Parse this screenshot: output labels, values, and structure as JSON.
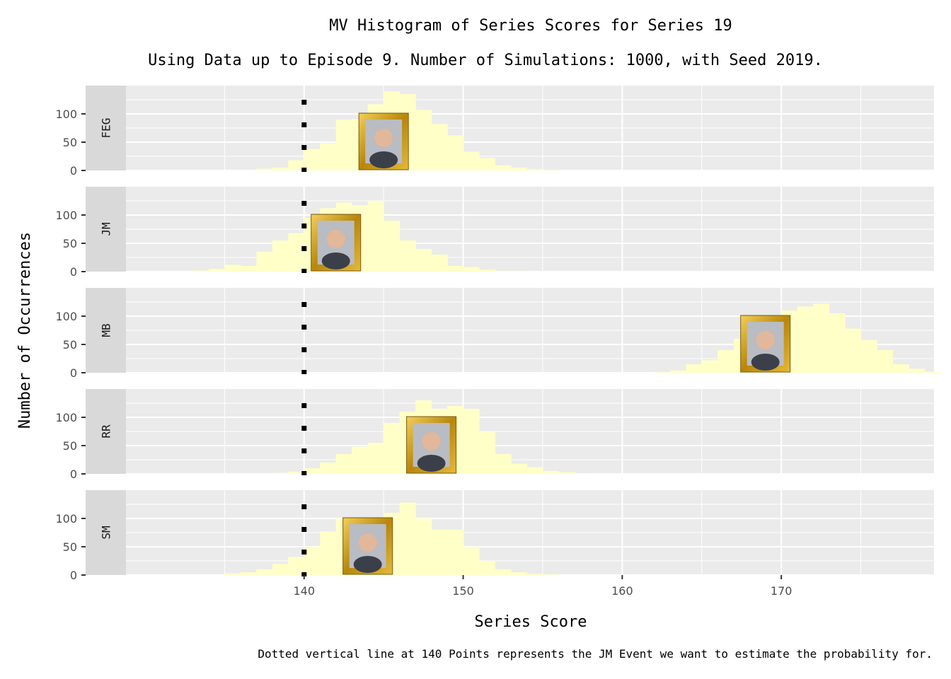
{
  "chart_data": {
    "type": "bar",
    "title": "MV Histogram of Series Scores for Series 19",
    "subtitle": "Using Data up to Episode 9. Number of Simulations: 1000, with Seed 2019.",
    "xlabel": "Series Score",
    "ylabel": "Number of Occurrences",
    "caption": "Dotted vertical line at 140 Points represents the JM Event we want to estimate the probability for.",
    "xlim": [
      128.8,
      179.6
    ],
    "ylim": [
      0,
      150
    ],
    "x_ticks": [
      140,
      150,
      160,
      170
    ],
    "y_ticks": [
      0,
      50,
      100
    ],
    "reference_line_x": 140,
    "bin_start": 129,
    "bin_width": 1,
    "bar_color": "#ffffc8",
    "panel_background": "#ebebeb",
    "strip_background": "#d9d9d9",
    "frame_color": "#d4a12a",
    "grid": true,
    "panels": [
      {
        "name": "FEG",
        "counts": [
          0,
          0,
          0,
          0,
          0,
          0,
          0,
          0,
          3,
          5,
          18,
          38,
          48,
          90,
          91,
          117,
          140,
          135,
          107,
          82,
          62,
          33,
          22,
          9,
          5,
          2,
          1,
          0,
          0,
          0,
          0,
          0,
          0,
          0,
          0,
          0,
          0,
          0,
          0,
          0,
          0,
          0,
          0,
          0,
          0,
          0,
          0,
          0,
          0,
          0,
          0
        ],
        "portrait_x": 145
      },
      {
        "name": "JM",
        "counts": [
          0,
          0,
          0,
          0,
          2,
          5,
          12,
          10,
          35,
          55,
          68,
          95,
          112,
          122,
          117,
          125,
          90,
          55,
          40,
          30,
          10,
          8,
          3,
          1,
          1,
          0,
          0,
          0,
          0,
          0,
          0,
          0,
          0,
          0,
          0,
          0,
          0,
          0,
          0,
          0,
          0,
          0,
          0,
          0,
          0,
          0,
          0,
          0,
          0,
          0,
          0
        ],
        "portrait_x": 142
      },
      {
        "name": "MB",
        "counts": [
          0,
          0,
          0,
          0,
          0,
          0,
          0,
          0,
          0,
          0,
          0,
          0,
          0,
          0,
          0,
          0,
          0,
          0,
          0,
          0,
          0,
          0,
          0,
          0,
          0,
          0,
          0,
          0,
          0,
          0,
          0,
          0,
          0,
          1,
          4,
          15,
          22,
          40,
          60,
          80,
          95,
          110,
          117,
          122,
          105,
          78,
          58,
          40,
          15,
          7,
          2
        ],
        "portrait_x": 169
      },
      {
        "name": "RR",
        "counts": [
          0,
          0,
          0,
          0,
          0,
          0,
          0,
          0,
          0,
          2,
          4,
          10,
          20,
          35,
          48,
          55,
          90,
          110,
          130,
          115,
          120,
          115,
          75,
          35,
          18,
          12,
          5,
          3,
          1,
          0,
          0,
          0,
          0,
          0,
          0,
          0,
          0,
          0,
          0,
          0,
          0,
          0,
          0,
          0,
          0,
          0,
          0,
          0,
          0,
          0,
          0
        ],
        "portrait_x": 148
      },
      {
        "name": "SM",
        "counts": [
          0,
          0,
          0,
          0,
          0,
          0,
          3,
          5,
          10,
          20,
          32,
          50,
          77,
          100,
          102,
          90,
          110,
          128,
          100,
          80,
          80,
          50,
          25,
          10,
          5,
          2,
          1,
          0,
          0,
          0,
          0,
          0,
          0,
          0,
          0,
          0,
          0,
          0,
          0,
          0,
          0,
          0,
          0,
          0,
          0,
          0,
          0,
          0,
          0,
          0,
          0
        ],
        "portrait_x": 144
      }
    ]
  }
}
